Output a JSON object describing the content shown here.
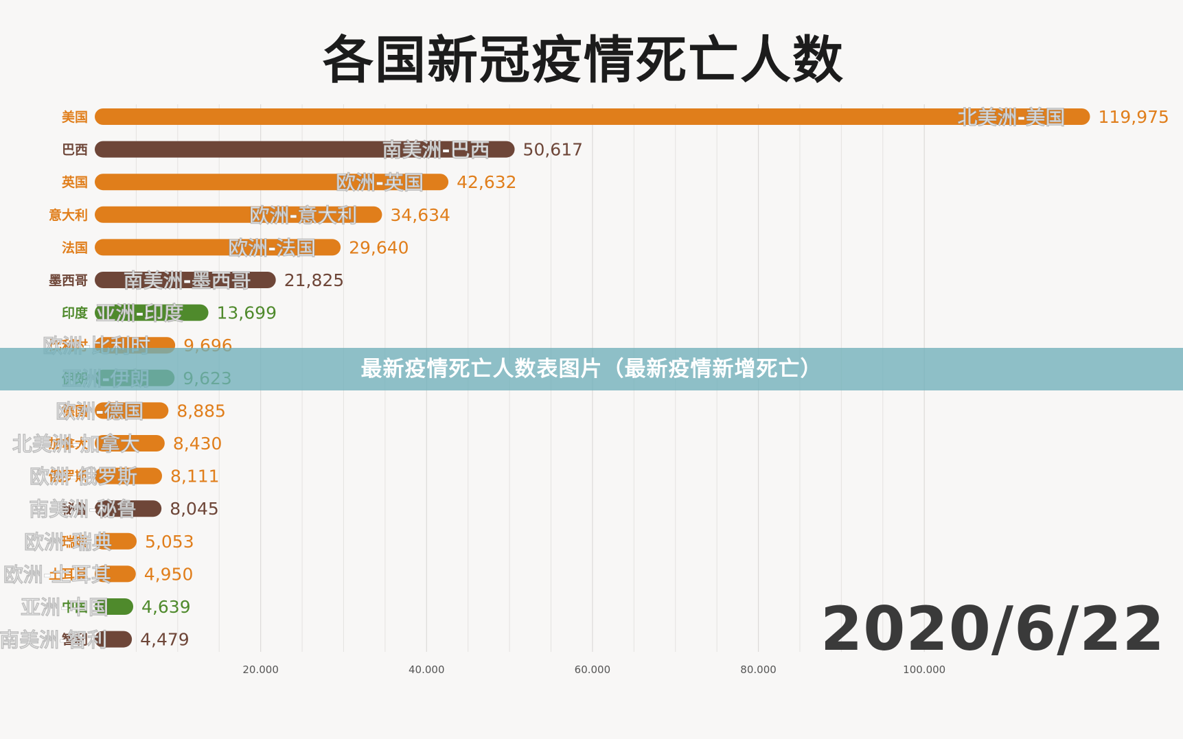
{
  "chart_data": {
    "type": "bar",
    "orientation": "horizontal",
    "title": "各国新冠疫情死亡人数",
    "date": "2020/6/22",
    "categories": [
      "美国",
      "巴西",
      "英国",
      "意大利",
      "法国",
      "墨西哥",
      "印度",
      "比利时",
      "伊朗",
      "德国",
      "加拿大",
      "俄罗斯",
      "秘鲁",
      "瑞典",
      "土耳其",
      "中国",
      "智利"
    ],
    "bar_labels": [
      "北美洲-美国",
      "南美洲-巴西",
      "欧洲-英国",
      "欧洲-意大利",
      "欧洲-法国",
      "南美洲-墨西哥",
      "亚洲-印度",
      "欧洲-比利时",
      "亚洲-伊朗",
      "欧洲-德国",
      "北美洲-加拿大",
      "欧洲-俄罗斯",
      "南美洲-秘鲁",
      "欧洲-瑞典",
      "欧洲-土耳其",
      "亚洲-中国",
      "南美洲-智利"
    ],
    "continents": [
      "北美洲",
      "南美洲",
      "欧洲",
      "欧洲",
      "欧洲",
      "南美洲",
      "亚洲",
      "欧洲",
      "亚洲",
      "欧洲",
      "北美洲",
      "欧洲",
      "南美洲",
      "欧洲",
      "欧洲",
      "亚洲",
      "南美洲"
    ],
    "values": [
      119975,
      50617,
      42632,
      34634,
      29640,
      21825,
      13699,
      9696,
      9623,
      8885,
      8430,
      8111,
      8045,
      5053,
      4950,
      4639,
      4479
    ],
    "value_labels": [
      "119,975",
      "50,617",
      "42,632",
      "34,634",
      "29,640",
      "21,825",
      "13,699",
      "9,696",
      "9,623",
      "8,885",
      "8,430",
      "8,111",
      "8,045",
      "5,053",
      "4,950",
      "4,639",
      "4,479"
    ],
    "x_ticks": [
      "20.000",
      "40.000",
      "60.000",
      "80.000",
      "100.000"
    ],
    "x_tick_values": [
      20000,
      40000,
      60000,
      80000,
      100000
    ],
    "xlim": [
      0,
      122000
    ],
    "grid": true,
    "continent_colors": {
      "北美洲": "#e07e1b",
      "欧洲": "#e07e1b",
      "南美洲": "#6e4638",
      "亚洲": "#4f8a2c"
    }
  },
  "banner": {
    "text": "最新疫情死亡人数表图片（最新疫情新增死亡）"
  }
}
